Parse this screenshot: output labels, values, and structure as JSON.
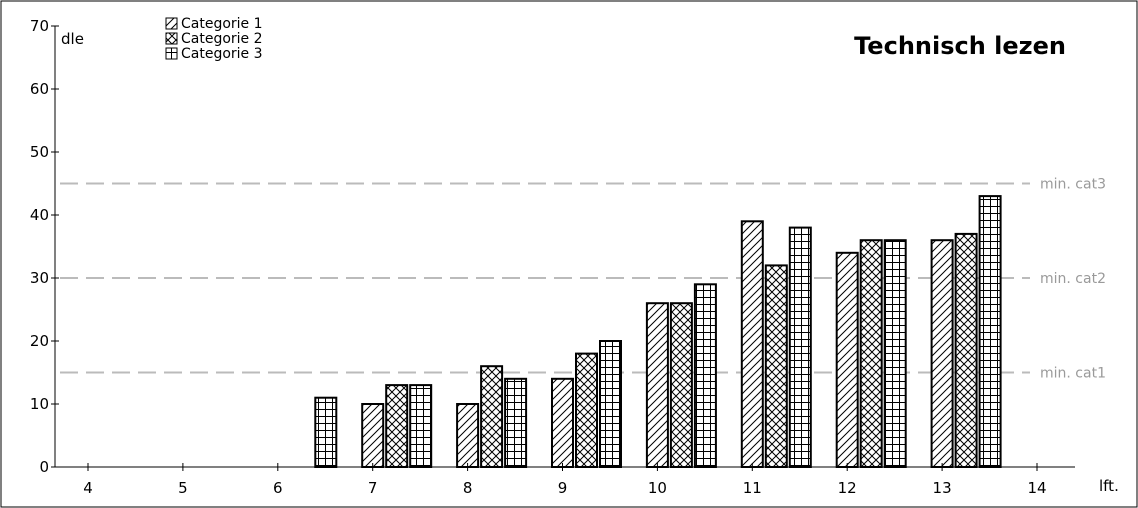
{
  "chart_data": {
    "type": "bar",
    "title": "Technisch lezen",
    "ylabel": "dle",
    "xlabel": "lft.",
    "ylim": [
      0,
      70
    ],
    "yticks": [
      0,
      10,
      20,
      30,
      40,
      50,
      60,
      70
    ],
    "xticks": [
      4,
      5,
      6,
      7,
      8,
      9,
      10,
      11,
      12,
      13,
      14
    ],
    "legend_position": "top-left",
    "grid": false,
    "series": [
      {
        "name": "Categorie 1",
        "pattern": "diagonal",
        "values": [
          null,
          null,
          null,
          10,
          10,
          14,
          26,
          39,
          34,
          36,
          null
        ]
      },
      {
        "name": "Categorie 2",
        "pattern": "crosshatch",
        "values": [
          null,
          null,
          null,
          13,
          16,
          18,
          26,
          32,
          36,
          37,
          null
        ]
      },
      {
        "name": "Categorie 3",
        "pattern": "grid",
        "values": [
          null,
          null,
          11,
          13,
          14,
          20,
          29,
          38,
          36,
          43,
          null
        ]
      }
    ],
    "reference_lines": [
      {
        "label": "min. cat3",
        "value": 45,
        "color": "#bbbbbb"
      },
      {
        "label": "min. cat2",
        "value": 30,
        "color": "#bbbbbb"
      },
      {
        "label": "min. cat1",
        "value": 15,
        "color": "#bbbbbb"
      }
    ]
  }
}
